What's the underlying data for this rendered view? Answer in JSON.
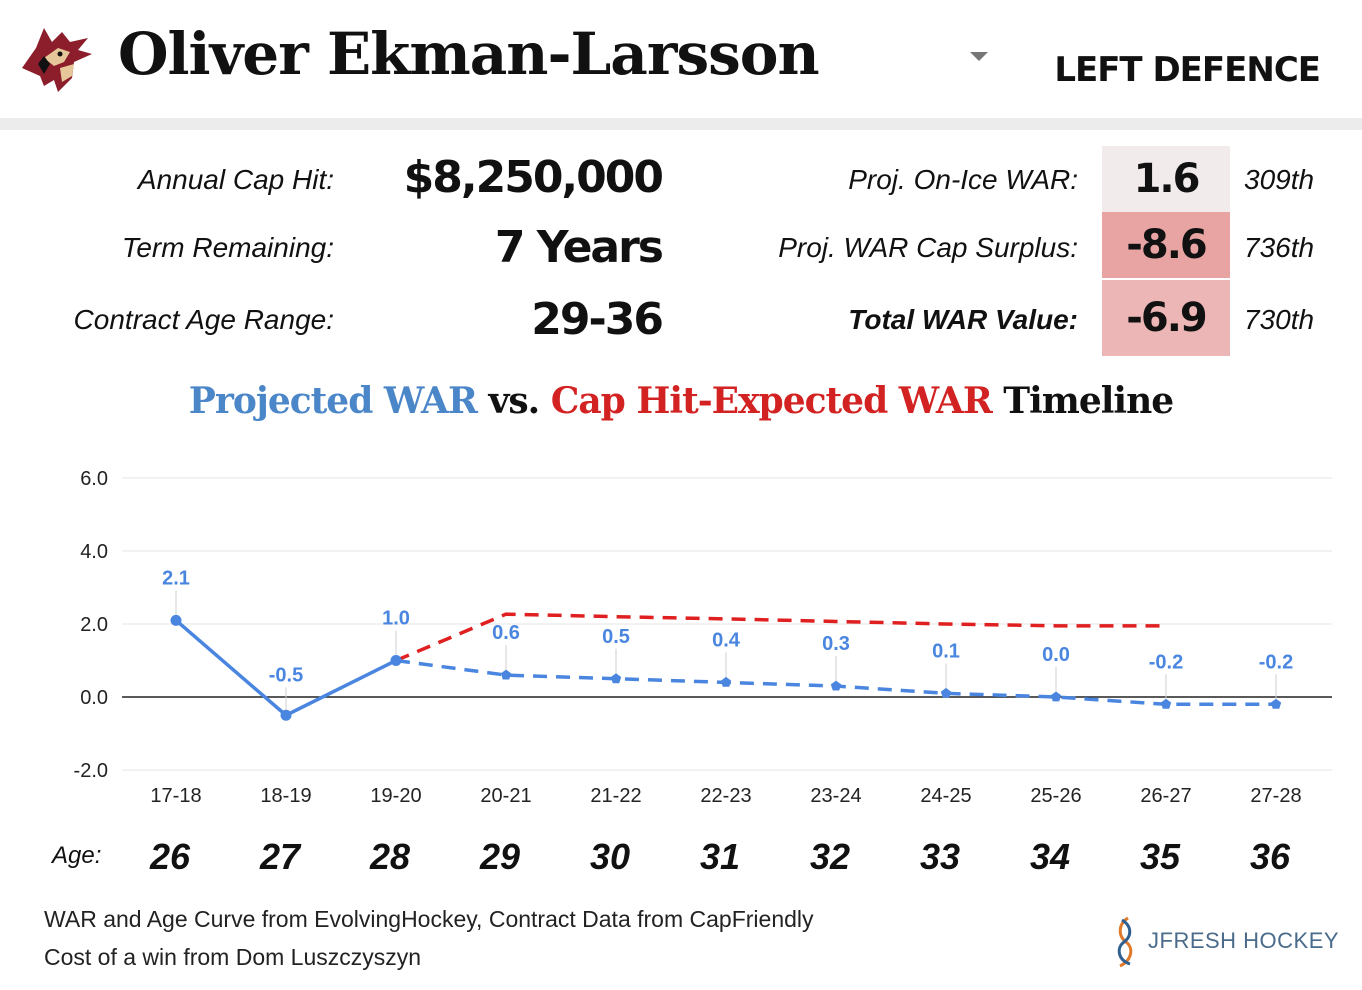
{
  "header": {
    "player_name": "Oliver Ekman-Larsson",
    "position": "LEFT DEFENCE",
    "logo_icon": "coyote-head-icon",
    "dropdown_icon": "caret-down-icon"
  },
  "contract": {
    "cap_hit_label": "Annual Cap Hit:",
    "cap_hit_value": "$8,250,000",
    "term_label": "Term Remaining:",
    "term_value": "7 Years",
    "age_range_label": "Contract Age Range:",
    "age_range_value": "29-36"
  },
  "war_stats": [
    {
      "label": "Proj. On-Ice WAR:",
      "value": "1.6",
      "rank": "309th",
      "color": "#f1ebeb",
      "bold_label": false
    },
    {
      "label": "Proj. WAR Cap Surplus:",
      "value": "-8.6",
      "rank": "736th",
      "color": "#e8a3a3",
      "bold_label": false
    },
    {
      "label": "Total WAR Value:",
      "value": "-6.9",
      "rank": "730th",
      "color": "#edb6b6",
      "bold_label": true
    }
  ],
  "chart_title": {
    "part1": "Projected WAR",
    "part2": " vs. ",
    "part3": "Cap Hit-Expected WAR",
    "part4": " Timeline",
    "color_projected": "#4a86c8",
    "color_expected": "#d32222"
  },
  "chart_data": {
    "type": "line",
    "categories": [
      "17-18",
      "18-19",
      "19-20",
      "20-21",
      "21-22",
      "22-23",
      "23-24",
      "24-25",
      "25-26",
      "26-27",
      "27-28"
    ],
    "ylim": [
      -2.0,
      6.0
    ],
    "yticks": [
      6.0,
      4.0,
      2.0,
      0.0,
      -2.0
    ],
    "ytick_labels": [
      "6.0",
      "4.0",
      "2.0",
      "0.0",
      "-2.0"
    ],
    "grid": true,
    "series": [
      {
        "values": [
          2.1,
          -0.5,
          1.0,
          0.6,
          0.5,
          0.4,
          0.3,
          0.1,
          0.0,
          -0.2,
          -0.2
        ],
        "labels": [
          "2.1",
          "-0.5",
          "1.0",
          "0.6",
          "0.5",
          "0.4",
          "0.3",
          "0.1",
          "0.0",
          "-0.2",
          "-0.2"
        ],
        "color": "#4a86e0",
        "style": "solid through 19-20, dashed after"
      },
      {
        "values": [
          null,
          null,
          1.0,
          2.27,
          2.2,
          2.14,
          2.07,
          2.0,
          1.95,
          1.95,
          null
        ],
        "color": "#e02020",
        "style": "dashed"
      }
    ]
  },
  "ages": {
    "label": "Age:",
    "values": [
      "26",
      "27",
      "28",
      "29",
      "30",
      "31",
      "32",
      "33",
      "34",
      "35",
      "36"
    ]
  },
  "credits": {
    "line1": "WAR and Age Curve from EvolvingHockey, Contract Data from CapFriendly",
    "line2": "Cost of a win from Dom Luszczyszyn"
  },
  "brand": {
    "name": "JFRESH HOCKEY",
    "icon": "jfresh-logo-icon"
  }
}
